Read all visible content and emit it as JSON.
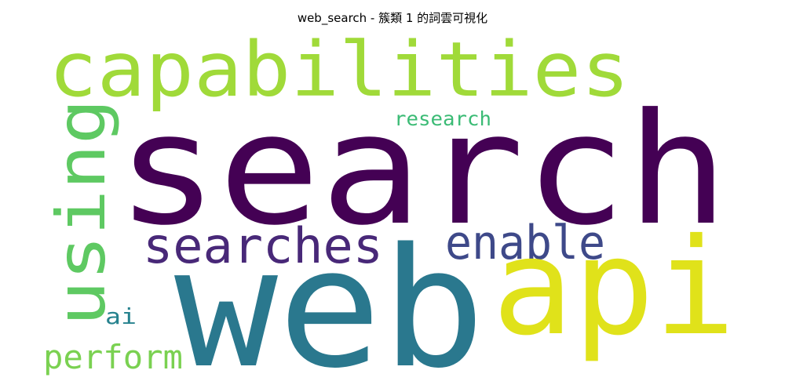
{
  "title": "web_search - 簇類 1 的詞雲可視化",
  "words": [
    {
      "text": "capabilities",
      "color": "#a0da39",
      "orientation": "horizontal"
    },
    {
      "text": "search",
      "color": "#440154",
      "orientation": "horizontal"
    },
    {
      "text": "using",
      "color": "#5ec962",
      "orientation": "vertical"
    },
    {
      "text": "research",
      "color": "#3bbb75",
      "orientation": "horizontal"
    },
    {
      "text": "searches",
      "color": "#482878",
      "orientation": "horizontal"
    },
    {
      "text": "enable",
      "color": "#3e4989",
      "orientation": "horizontal"
    },
    {
      "text": "web",
      "color": "#2a788e",
      "orientation": "horizontal"
    },
    {
      "text": "api",
      "color": "#e0e21a",
      "orientation": "horizontal"
    },
    {
      "text": "ai",
      "color": "#26828e",
      "orientation": "horizontal"
    },
    {
      "text": "perform",
      "color": "#7ad151",
      "orientation": "horizontal"
    }
  ]
}
